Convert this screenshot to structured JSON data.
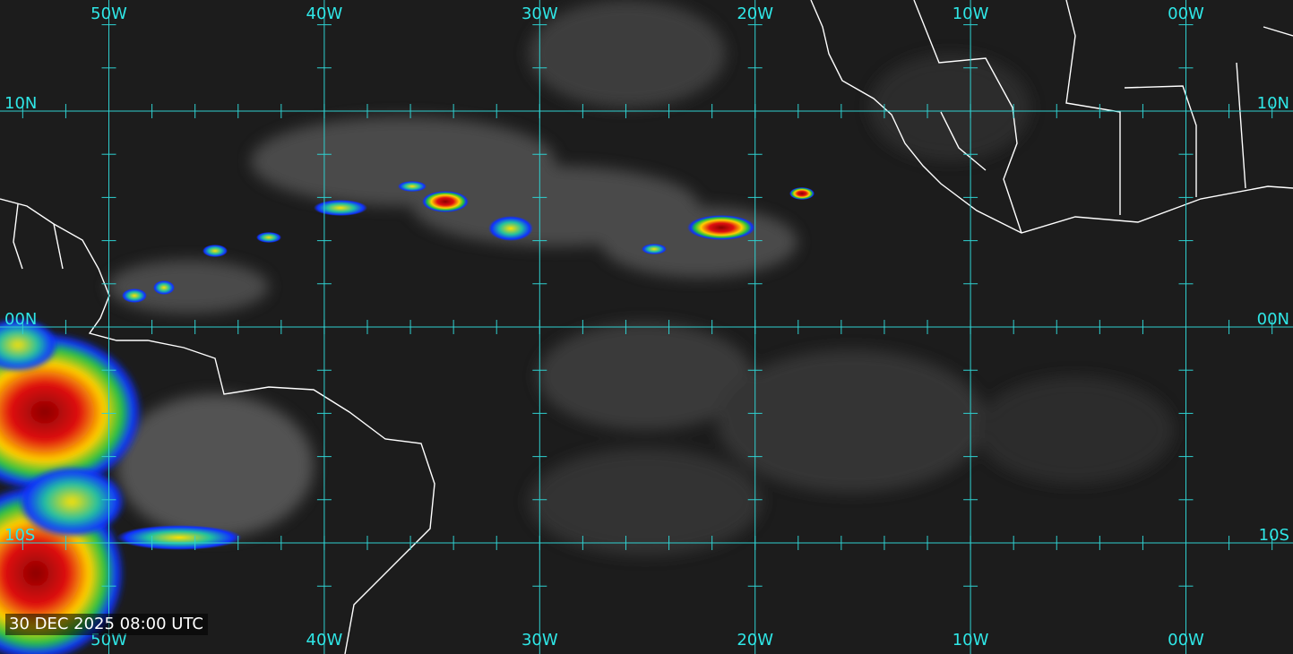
{
  "longitude_labels": [
    "50W",
    "40W",
    "30W",
    "20W",
    "10W",
    "00W"
  ],
  "latitude_labels": [
    "10N",
    "00N",
    "10S"
  ],
  "timestamp": "30 DEC 2025 08:00 UTC"
}
